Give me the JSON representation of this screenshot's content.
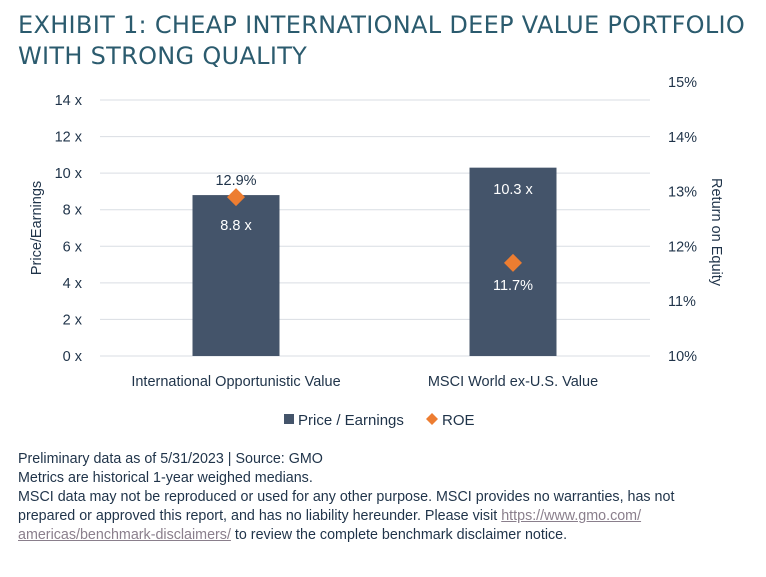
{
  "title": {
    "line1": "EXHIBIT 1: CHEAP INTERNATIONAL DEEP VALUE PORTFOLIO",
    "line2": "WITH STRONG QUALITY"
  },
  "chart_data": {
    "type": "bar",
    "categories": [
      "International Opportunistic Value",
      "MSCI World ex-U.S. Value"
    ],
    "series": [
      {
        "name": "Price / Earnings",
        "type": "bar",
        "axis": "left",
        "values": [
          8.8,
          10.3
        ],
        "labels": [
          "8.8 x",
          "10.3 x"
        ],
        "color": "#44546a"
      },
      {
        "name": "ROE",
        "type": "scatter",
        "axis": "right",
        "values": [
          12.9,
          11.7
        ],
        "labels": [
          "12.9%",
          "11.7%"
        ],
        "color": "#ed7d31"
      }
    ],
    "ylabel_left": "Price/Earnings",
    "ylabel_right": "Return on Equity",
    "ylim_left": [
      0,
      14
    ],
    "yticks_left": [
      "0 x",
      "2 x",
      "4 x",
      "6 x",
      "8 x",
      "10 x",
      "12 x",
      "14 x"
    ],
    "ylim_right": [
      10,
      15
    ],
    "yticks_right": [
      "10%",
      "11%",
      "12%",
      "13%",
      "14%",
      "15%"
    ],
    "grid": true,
    "legend": "bottom-center"
  },
  "colors": {
    "bar": "#44546a",
    "marker": "#ed7d31",
    "grid": "#d9dde3",
    "title": "#2b5b6e",
    "text": "#1f3349"
  },
  "footnotes": {
    "line1": "Preliminary data as of 5/31/2023 | Source: GMO",
    "line2": "Metrics are historical 1-year weighed medians.",
    "line3": "MSCI data may not be reproduced or used for any other purpose. MSCI provides no warranties, has not",
    "line4_text": "prepared or approved this report, and has no liability hereunder. Please visit ",
    "line4_link": "https://www.gmo.com/",
    "line5_link": "americas/benchmark-disclaimers/",
    "line5_text": " to review the complete benchmark disclaimer notice."
  }
}
